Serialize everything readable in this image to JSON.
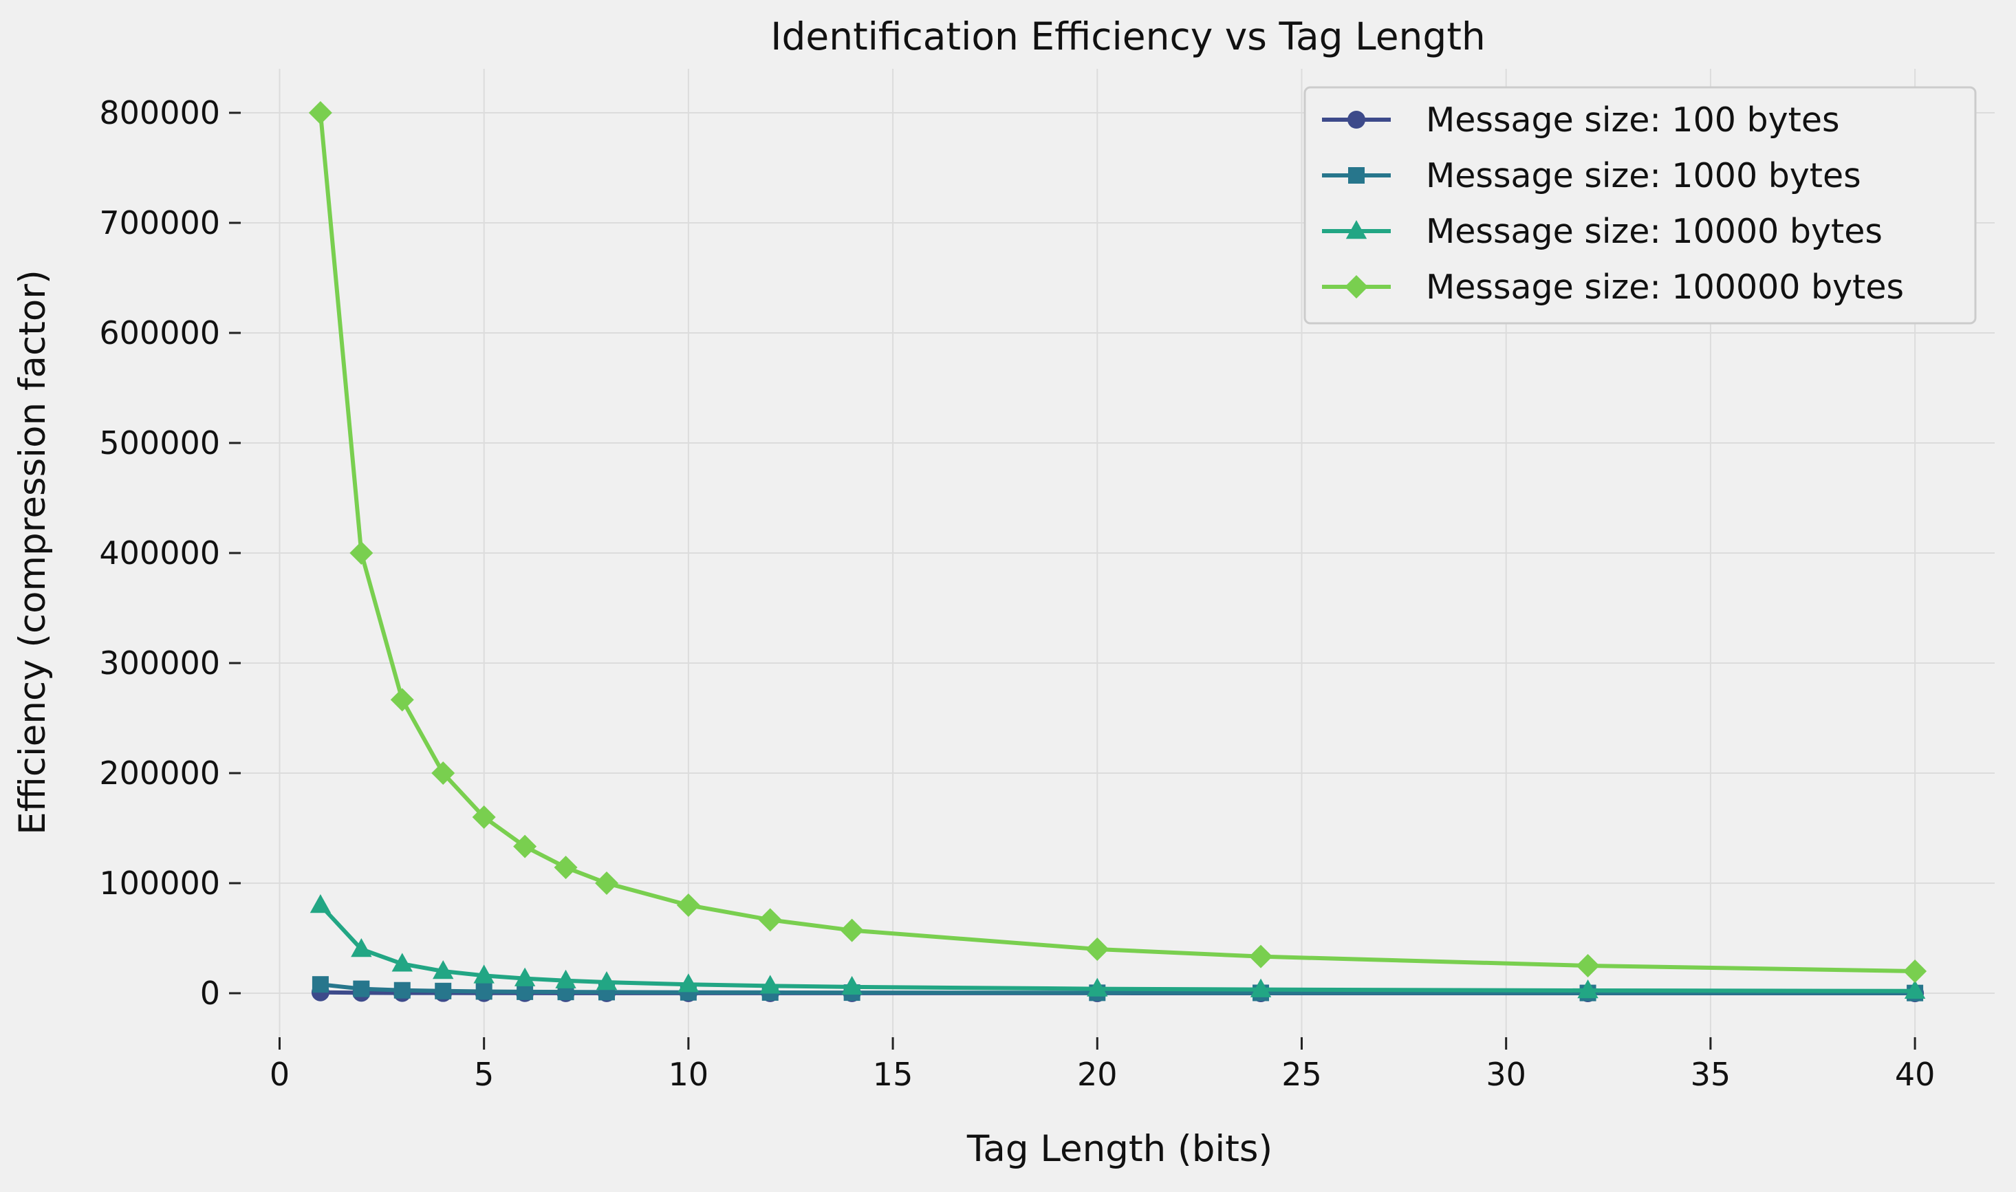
{
  "chart_data": {
    "type": "line",
    "title": "Identification Efficiency vs Tag Length",
    "xlabel": "Tag Length (bits)",
    "ylabel": "Efficiency (compression factor)",
    "xlim": [
      -0.95,
      41.95
    ],
    "ylim": [
      -40000,
      840000
    ],
    "xticks": [
      0,
      5,
      10,
      15,
      20,
      25,
      30,
      35,
      40
    ],
    "yticks": [
      0,
      100000,
      200000,
      300000,
      400000,
      500000,
      600000,
      700000,
      800000
    ],
    "grid": true,
    "legend_position": "top-right",
    "x": [
      1,
      2,
      3,
      4,
      5,
      6,
      7,
      8,
      10,
      12,
      14,
      20,
      24,
      32,
      40
    ],
    "series": [
      {
        "name": "Message size: 100 bytes",
        "color": "#3d4a8a",
        "marker": "circle",
        "values": [
          800,
          400,
          266.7,
          200,
          160,
          133.3,
          114.3,
          100,
          80,
          66.7,
          57.1,
          40,
          33.3,
          25,
          20
        ]
      },
      {
        "name": "Message size: 1000 bytes",
        "color": "#27768c",
        "marker": "square",
        "values": [
          8000,
          4000,
          2666.7,
          2000,
          1600,
          1333.3,
          1142.9,
          1000,
          800,
          666.7,
          571.4,
          400,
          333.3,
          250,
          200
        ]
      },
      {
        "name": "Message size: 10000 bytes",
        "color": "#22a684",
        "marker": "triangle",
        "values": [
          80000,
          40000,
          26666.7,
          20000,
          16000,
          13333.3,
          11428.6,
          10000,
          8000,
          6666.7,
          5714.3,
          4000,
          3333.3,
          2500,
          2000
        ]
      },
      {
        "name": "Message size: 100000 bytes",
        "color": "#79cf4f",
        "marker": "diamond",
        "values": [
          800000,
          400000,
          266666.7,
          200000,
          160000,
          133333.3,
          114285.7,
          100000,
          80000,
          66666.7,
          57142.9,
          40000,
          33333.3,
          25000,
          20000
        ]
      }
    ]
  }
}
